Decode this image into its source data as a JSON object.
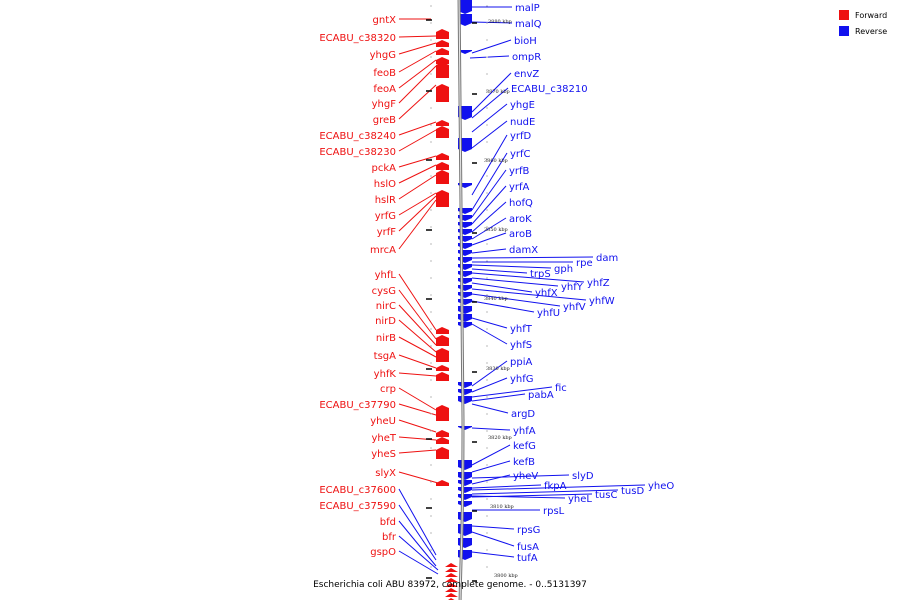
{
  "caption": "Escherichia coli ABU 83972, complete genome. - 0..5131397",
  "legend": [
    {
      "label": "Forward",
      "color": "#ee1111"
    },
    {
      "label": "Reverse",
      "color": "#1111ee"
    }
  ],
  "colors": {
    "forward": "#ee1111",
    "reverse": "#1111ee",
    "backbone": "#999999"
  },
  "ticks": [
    "3880 kbp",
    "3870 kbp",
    "3860 kbp",
    "3850 kbp",
    "3840 kbp",
    "3830 kbp",
    "3820 kbp",
    "3810 kbp",
    "3800 kbp"
  ],
  "forward_genes": [
    "gntX",
    "ECABU_c38320",
    "yhgG",
    "feoB",
    "feoA",
    "yhgF",
    "greB",
    "ECABU_c38240",
    "ECABU_c38230",
    "pckA",
    "hslO",
    "hslR",
    "yrfG",
    "yrfF",
    "mrcA",
    "yhfL",
    "cysG",
    "nirC",
    "nirD",
    "nirB",
    "tsgA",
    "yhfK",
    "crp",
    "ECABU_c37790",
    "yheU",
    "yheT",
    "yheS",
    "slyX",
    "ECABU_c37600",
    "ECABU_c37590",
    "bfd",
    "bfr",
    "gspO"
  ],
  "reverse_genes": [
    "malP",
    "malQ",
    "bioH",
    "ompR",
    "envZ",
    "ECABU_c38210",
    "yhgE",
    "nudE",
    "yrfD",
    "yrfC",
    "yrfB",
    "yrfA",
    "hofQ",
    "aroK",
    "aroB",
    "damX",
    "dam",
    "rpe",
    "gph",
    "trpS",
    "yhfZ",
    "yhfY",
    "yhfX",
    "yhfW",
    "yhfV",
    "yhfU",
    "yhfT",
    "yhfS",
    "ppiA",
    "yhfG",
    "fic",
    "pabA",
    "argD",
    "yhfA",
    "kefG",
    "kefB",
    "slyD",
    "yheV",
    "yheO",
    "tusD",
    "tusC",
    "fkpA",
    "yheL",
    "rpsL",
    "rpsG",
    "fusA",
    "tufA"
  ]
}
